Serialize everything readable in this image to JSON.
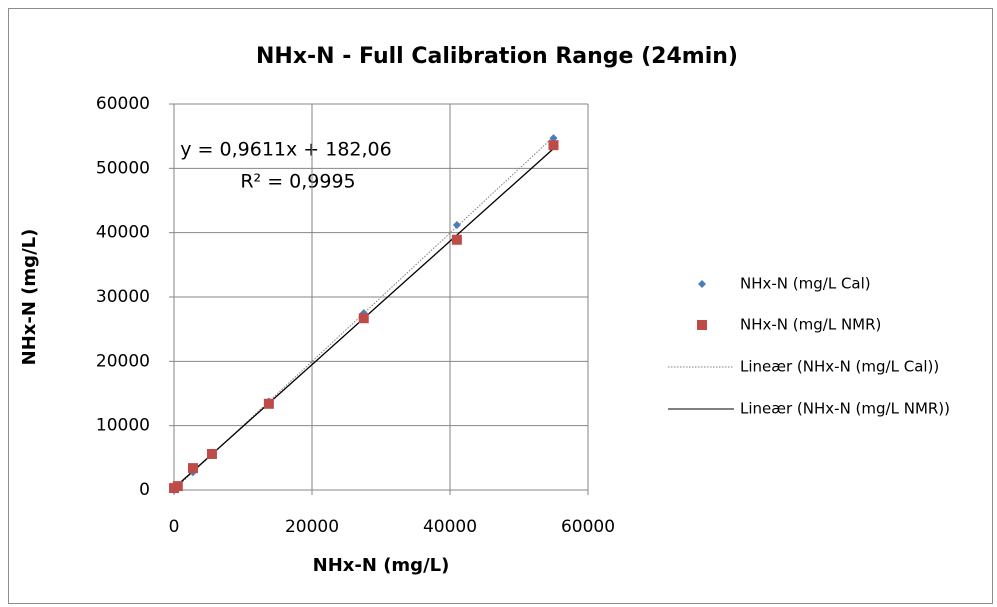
{
  "chart_data": {
    "type": "scatter",
    "title": "NHx-N - Full Calibration Range (24min)",
    "x_label": "NHx-N (mg/L)",
    "y_label": "NHx-N (mg/L)",
    "annotations": [
      "y = 0,9611x + 182,06",
      "R² = 0,9995"
    ],
    "xlim": [
      0,
      60000
    ],
    "xticks": [
      0,
      20000,
      40000,
      60000
    ],
    "ylim": [
      0,
      60000
    ],
    "yticks": [
      0,
      10000,
      20000,
      30000,
      40000,
      50000,
      60000
    ],
    "grid": true,
    "legend": "right",
    "series": [
      {
        "name": "NHx-N (mg/L Cal)",
        "color": "#4a7ebb",
        "marker": "diamond",
        "x": [
          0,
          550,
          2750,
          5500,
          13750,
          27500,
          41000,
          55000
        ],
        "values": [
          0,
          550,
          2750,
          5500,
          13750,
          27500,
          41200,
          54700
        ]
      },
      {
        "name": "NHx-N (mg/L NMR)",
        "color": "#be4b48",
        "marker": "square",
        "x": [
          0,
          550,
          2750,
          5500,
          13750,
          27500,
          41000,
          55000
        ],
        "values": [
          300,
          600,
          3400,
          5600,
          13400,
          26700,
          38900,
          53600
        ]
      }
    ],
    "trendlines": [
      {
        "name": "Lineær (NHx-N (mg/L Cal))",
        "series": 0,
        "style": "dotted",
        "color": "#7f7f7f"
      },
      {
        "name": "Lineær (NHx-N (mg/L NMR))",
        "series": 1,
        "style": "solid",
        "color": "#000000"
      }
    ]
  }
}
